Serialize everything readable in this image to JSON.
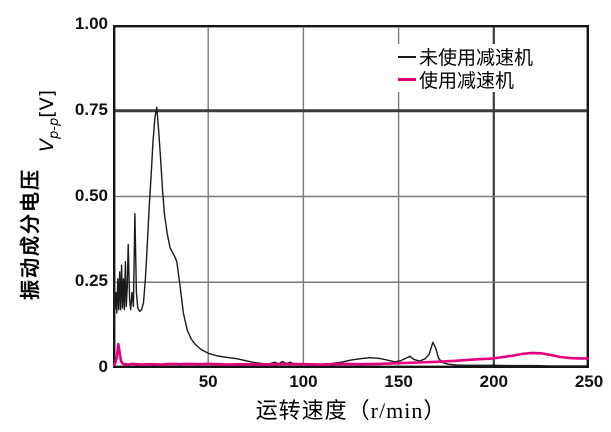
{
  "figure": {
    "background": "#ffffff",
    "border_color": "#151515",
    "grid_color": "#7a7a7a",
    "grid_emphasis_color": "#3c3c3c"
  },
  "chart_data": {
    "type": "line",
    "title": "",
    "xlabel": "运转速度（r/min）",
    "ylabel_cn": "振动成分电压",
    "ylabel_sym": {
      "v": "V",
      "sub": "p-p",
      "unit": "[V]"
    },
    "xlim": [
      0,
      250
    ],
    "ylim": [
      0,
      1.0
    ],
    "grid": true,
    "legend_position": "top-right",
    "xticks": [
      {
        "v": 50,
        "label": "50"
      },
      {
        "v": 100,
        "label": "100"
      },
      {
        "v": 150,
        "label": "150"
      },
      {
        "v": 200,
        "label": "200"
      },
      {
        "v": 250,
        "label": "250"
      }
    ],
    "yticks": [
      {
        "v": 0,
        "label": "0"
      },
      {
        "v": 0.25,
        "label": "0.25"
      },
      {
        "v": 0.5,
        "label": "0.50"
      },
      {
        "v": 0.75,
        "label": "0.75"
      },
      {
        "v": 1.0,
        "label": "1.00"
      }
    ],
    "emphasized_xgrid": [
      200
    ],
    "emphasized_ygrid": [
      0.75
    ],
    "series": [
      {
        "name": "未使用减速机",
        "color": "#1a1a1a",
        "stroke_width": 1.4,
        "points": [
          [
            0,
            0.12
          ],
          [
            0.5,
            0.23
          ],
          [
            1,
            0.17
          ],
          [
            1.5,
            0.22
          ],
          [
            2,
            0.16
          ],
          [
            2.5,
            0.26
          ],
          [
            3,
            0.17
          ],
          [
            3.5,
            0.28
          ],
          [
            4,
            0.17
          ],
          [
            4.5,
            0.3
          ],
          [
            5,
            0.175
          ],
          [
            5.5,
            0.26
          ],
          [
            6,
            0.17
          ],
          [
            6.5,
            0.31
          ],
          [
            7,
            0.18
          ],
          [
            7.5,
            0.24
          ],
          [
            8,
            0.36
          ],
          [
            8.7,
            0.2
          ],
          [
            9.3,
            0.17
          ],
          [
            10,
            0.22
          ],
          [
            10.7,
            0.18
          ],
          [
            11.5,
            0.45
          ],
          [
            12.3,
            0.22
          ],
          [
            13,
            0.175
          ],
          [
            14,
            0.165
          ],
          [
            15,
            0.17
          ],
          [
            16,
            0.19
          ],
          [
            17,
            0.26
          ],
          [
            18,
            0.36
          ],
          [
            19,
            0.47
          ],
          [
            20,
            0.56
          ],
          [
            21,
            0.66
          ],
          [
            22,
            0.73
          ],
          [
            23,
            0.76
          ],
          [
            24,
            0.69
          ],
          [
            25,
            0.61
          ],
          [
            26,
            0.52
          ],
          [
            27,
            0.45
          ],
          [
            28.5,
            0.39
          ],
          [
            30,
            0.35
          ],
          [
            32,
            0.33
          ],
          [
            33.5,
            0.31
          ],
          [
            35,
            0.25
          ],
          [
            37,
            0.16
          ],
          [
            39,
            0.11
          ],
          [
            41,
            0.085
          ],
          [
            43,
            0.07
          ],
          [
            46,
            0.055
          ],
          [
            50,
            0.043
          ],
          [
            55,
            0.035
          ],
          [
            60,
            0.031
          ],
          [
            65,
            0.027
          ],
          [
            70,
            0.021
          ],
          [
            74,
            0.016
          ],
          [
            78,
            0.013
          ],
          [
            82,
            0.012
          ],
          [
            85,
            0.017
          ],
          [
            87,
            0.012
          ],
          [
            89,
            0.019
          ],
          [
            91,
            0.013
          ],
          [
            93,
            0.017
          ],
          [
            95,
            0.012
          ],
          [
            100,
            0.012
          ],
          [
            105,
            0.01
          ],
          [
            110,
            0.011
          ],
          [
            115,
            0.013
          ],
          [
            120,
            0.017
          ],
          [
            125,
            0.023
          ],
          [
            130,
            0.027
          ],
          [
            135,
            0.03
          ],
          [
            140,
            0.028
          ],
          [
            144,
            0.023
          ],
          [
            148,
            0.018
          ],
          [
            151,
            0.021
          ],
          [
            154,
            0.029
          ],
          [
            156,
            0.034
          ],
          [
            158,
            0.025
          ],
          [
            161,
            0.02
          ],
          [
            164,
            0.027
          ],
          [
            166,
            0.04
          ],
          [
            168,
            0.075
          ],
          [
            169.5,
            0.058
          ],
          [
            171,
            0.028
          ],
          [
            173,
            0.016
          ],
          [
            176,
            0.011
          ],
          [
            180,
            0.009
          ],
          [
            185,
            0.008
          ],
          [
            190,
            0.008
          ],
          [
            195,
            0.008
          ],
          [
            200,
            0.008
          ],
          [
            210,
            0.007
          ],
          [
            220,
            0.007
          ],
          [
            230,
            0.006
          ],
          [
            240,
            0.006
          ],
          [
            250,
            0.006
          ]
        ]
      },
      {
        "name": "使用减速机",
        "color": "#e6007d",
        "stroke_width": 2.6,
        "points": [
          [
            0,
            0.008
          ],
          [
            1,
            0.012
          ],
          [
            2,
            0.03
          ],
          [
            2.8,
            0.07
          ],
          [
            3.5,
            0.045
          ],
          [
            4.2,
            0.02
          ],
          [
            5,
            0.013
          ],
          [
            6,
            0.011
          ],
          [
            8,
            0.01
          ],
          [
            10,
            0.012
          ],
          [
            15,
            0.01
          ],
          [
            20,
            0.011
          ],
          [
            25,
            0.01
          ],
          [
            30,
            0.012
          ],
          [
            35,
            0.011
          ],
          [
            40,
            0.012
          ],
          [
            45,
            0.011
          ],
          [
            50,
            0.012
          ],
          [
            60,
            0.01
          ],
          [
            70,
            0.011
          ],
          [
            80,
            0.01
          ],
          [
            90,
            0.012
          ],
          [
            100,
            0.011
          ],
          [
            110,
            0.01
          ],
          [
            120,
            0.012
          ],
          [
            130,
            0.011
          ],
          [
            140,
            0.012
          ],
          [
            150,
            0.014
          ],
          [
            160,
            0.016
          ],
          [
            170,
            0.018
          ],
          [
            180,
            0.021
          ],
          [
            190,
            0.025
          ],
          [
            200,
            0.028
          ],
          [
            205,
            0.032
          ],
          [
            210,
            0.036
          ],
          [
            215,
            0.041
          ],
          [
            220,
            0.044
          ],
          [
            225,
            0.043
          ],
          [
            230,
            0.038
          ],
          [
            235,
            0.032
          ],
          [
            240,
            0.029
          ],
          [
            245,
            0.028
          ],
          [
            250,
            0.028
          ]
        ]
      }
    ]
  }
}
